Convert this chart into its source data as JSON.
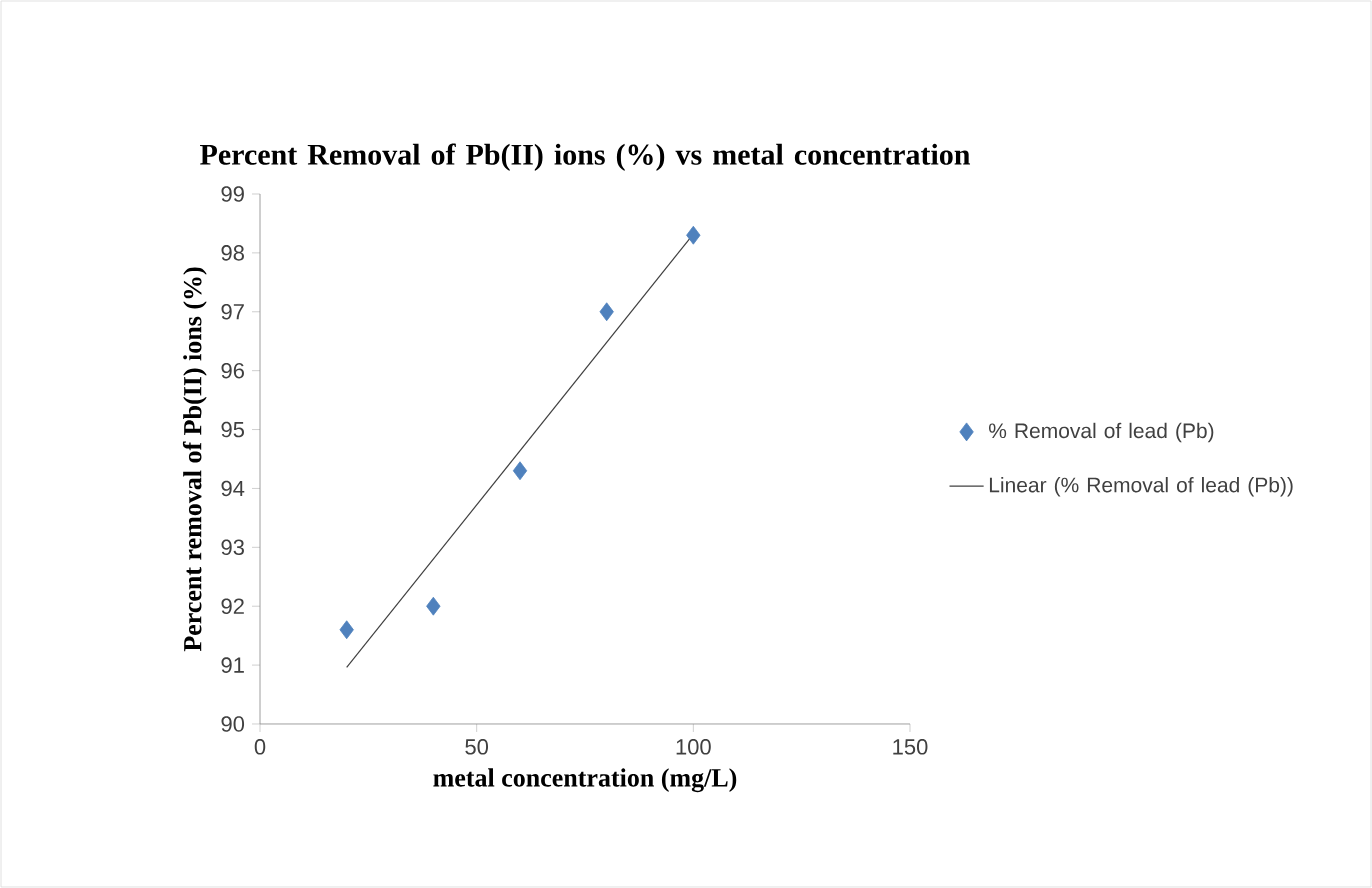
{
  "chart_data": {
    "type": "scatter",
    "title": "Percent Removal of Pb(II) ions (%) vs metal concentration",
    "xlabel": "metal concentration (mg/L)",
    "ylabel": "Percent removal of  Pb(II) ions (%)",
    "xlim": [
      0,
      150
    ],
    "xticks": [
      0,
      50,
      100,
      150
    ],
    "ylim": [
      90,
      99
    ],
    "yticks": [
      90,
      91,
      92,
      93,
      94,
      95,
      96,
      97,
      98,
      99
    ],
    "marker": "diamond",
    "legend": "right",
    "grid": false,
    "series": [
      {
        "name": "% Removal of lead (Pb)",
        "color": "#4f81bd",
        "x": [
          20,
          40,
          60,
          80,
          100
        ],
        "values": [
          91.6,
          92.0,
          94.3,
          97.0,
          98.3
        ]
      },
      {
        "name": "Linear (% Removal of lead (Pb))",
        "type": "line",
        "marker": "none",
        "color": "#404040",
        "x": [
          20,
          100
        ],
        "values": [
          90.96,
          98.32
        ]
      }
    ]
  }
}
